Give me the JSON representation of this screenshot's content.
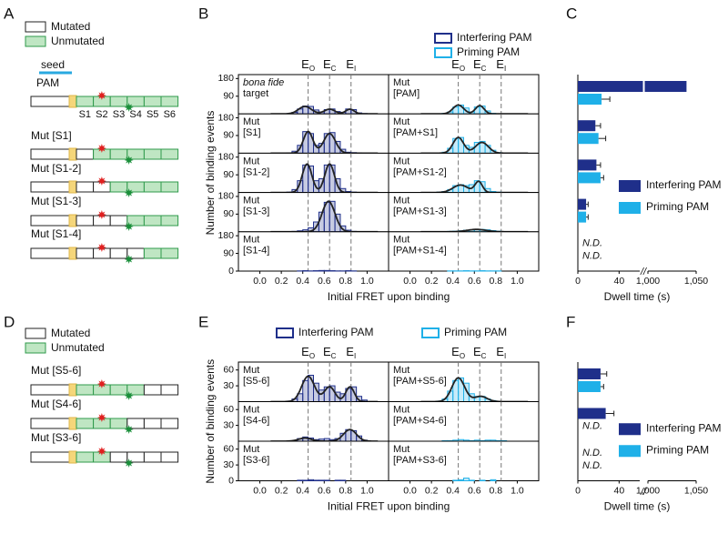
{
  "panel_a": {
    "label": "A",
    "legend": [
      "Mutated",
      "Unmutated"
    ],
    "seed": "seed",
    "pam": "PAM",
    "segments": [
      "S1",
      "S2",
      "S3",
      "S4",
      "S5",
      "S6"
    ],
    "constructs": [
      {
        "mutated": [
          false,
          false,
          false,
          false,
          false,
          false
        ]
      },
      {
        "name": "Mut [S1]",
        "mutated": [
          true,
          false,
          false,
          false,
          false,
          false
        ]
      },
      {
        "name": "Mut [S1-2]",
        "mutated": [
          true,
          true,
          false,
          false,
          false,
          false
        ]
      },
      {
        "name": "Mut [S1-3]",
        "mutated": [
          true,
          true,
          true,
          false,
          false,
          false
        ]
      },
      {
        "name": "Mut [S1-4]",
        "mutated": [
          true,
          true,
          true,
          true,
          false,
          false
        ]
      }
    ]
  },
  "panel_b": {
    "label": "B",
    "legend": [
      "Interfering PAM",
      "Priming PAM"
    ],
    "colors": [
      "#1f2f8a",
      "#1fb0e8"
    ],
    "efret": [
      {
        "value": 0.45,
        "label": "E",
        "subscript": "O"
      },
      {
        "value": 0.65,
        "label": "E",
        "subscript": "C"
      },
      {
        "value": 0.85,
        "label": "E",
        "subscript": "I"
      }
    ],
    "ylabel": "Number of binding events",
    "xlabel": "Initial FRET upon binding",
    "xlim": [
      -0.2,
      1.2
    ],
    "xticks": [
      {
        "value": 0,
        "label": "0.0"
      },
      {
        "value": 0.2,
        "label": "0.2"
      },
      {
        "value": 0.4,
        "label": "0.4"
      },
      {
        "value": 0.6,
        "label": "0.6"
      },
      {
        "value": 0.8,
        "label": "0.8"
      },
      {
        "value": 1,
        "label": "1.0"
      }
    ],
    "ylim": [
      0,
      200
    ],
    "yticks": [
      0,
      90,
      180
    ],
    "bins": [
      0.2,
      0.25,
      0.3,
      0.35,
      0.4,
      0.45,
      0.5,
      0.55,
      0.6,
      0.65,
      0.7,
      0.75,
      0.8,
      0.85,
      0.9,
      0.95,
      1.0
    ],
    "rows": [
      {
        "left": {
          "text": [
            "bona fide",
            "target"
          ],
          "italic_first_line": true,
          "counts": [
            0,
            2,
            8,
            25,
            40,
            38,
            20,
            10,
            22,
            25,
            12,
            8,
            25,
            22,
            5,
            2
          ],
          "fits": [
            {
              "mu": 0.42,
              "sigma": 0.06,
              "amp": 38
            },
            {
              "mu": 0.65,
              "sigma": 0.05,
              "amp": 24
            },
            {
              "mu": 0.84,
              "sigma": 0.04,
              "amp": 24
            }
          ]
        },
        "right": {
          "text": [
            "Mut",
            "[PAM]"
          ],
          "counts": [
            0,
            1,
            3,
            10,
            35,
            45,
            30,
            10,
            35,
            40,
            15,
            3,
            1,
            0,
            0,
            0
          ],
          "fits": [
            {
              "mu": 0.45,
              "sigma": 0.05,
              "amp": 45
            },
            {
              "mu": 0.65,
              "sigma": 0.04,
              "amp": 42
            }
          ]
        }
      },
      {
        "left": {
          "text": [
            "Mut",
            "[S1]"
          ],
          "counts": [
            0,
            2,
            10,
            40,
            110,
            100,
            40,
            50,
            100,
            105,
            60,
            20,
            5,
            3,
            2,
            0
          ],
          "fits": [
            {
              "mu": 0.45,
              "sigma": 0.045,
              "amp": 110
            },
            {
              "mu": 0.65,
              "sigma": 0.055,
              "amp": 100
            }
          ]
        },
        "right": {
          "text": [
            "Mut",
            "[PAM+S1]"
          ],
          "counts": [
            0,
            1,
            5,
            25,
            75,
            80,
            40,
            30,
            55,
            60,
            40,
            15,
            3,
            0,
            0,
            0
          ],
          "fits": [
            {
              "mu": 0.45,
              "sigma": 0.05,
              "amp": 80
            },
            {
              "mu": 0.67,
              "sigma": 0.06,
              "amp": 55
            }
          ]
        }
      },
      {
        "left": {
          "text": [
            "Mut",
            "[S1-2]"
          ],
          "counts": [
            0,
            2,
            15,
            60,
            140,
            135,
            60,
            70,
            140,
            140,
            70,
            20,
            5,
            2,
            0,
            0
          ],
          "fits": [
            {
              "mu": 0.44,
              "sigma": 0.045,
              "amp": 145
            },
            {
              "mu": 0.65,
              "sigma": 0.045,
              "amp": 145
            }
          ]
        },
        "right": {
          "text": [
            "Mut",
            "[PAM+S1-2]"
          ],
          "counts": [
            0,
            2,
            5,
            15,
            35,
            40,
            35,
            40,
            60,
            55,
            20,
            5,
            2,
            0,
            0,
            0
          ],
          "fits": [
            {
              "mu": 0.47,
              "sigma": 0.07,
              "amp": 38
            },
            {
              "mu": 0.64,
              "sigma": 0.035,
              "amp": 55
            }
          ]
        }
      },
      {
        "left": {
          "text": [
            "Mut",
            "[S1-3]"
          ],
          "counts": [
            0,
            0,
            2,
            5,
            10,
            20,
            50,
            100,
            150,
            155,
            90,
            30,
            8,
            2,
            0,
            0
          ],
          "fits": [
            {
              "mu": 0.64,
              "sigma": 0.06,
              "amp": 155
            }
          ]
        },
        "right": {
          "text": [
            "Mut",
            "[PAM+S1-3]"
          ],
          "counts": [
            0,
            0,
            1,
            2,
            3,
            5,
            8,
            10,
            12,
            12,
            10,
            6,
            3,
            1,
            0,
            0
          ],
          "fits": [
            {
              "mu": 0.62,
              "sigma": 0.09,
              "amp": 12
            }
          ]
        }
      },
      {
        "left": {
          "text": [
            "Mut",
            "[S1-4]"
          ],
          "counts": [
            0,
            0,
            0,
            1,
            2,
            1,
            2,
            3,
            3,
            2,
            1,
            1,
            2,
            1,
            0,
            0
          ]
        },
        "right": {
          "text": [
            "Mut",
            "[PAM+S1-4]"
          ],
          "counts": [
            0,
            0,
            0,
            1,
            1,
            1,
            2,
            1,
            1,
            2,
            1,
            1,
            1,
            0,
            0,
            0
          ]
        }
      }
    ]
  },
  "panel_c": {
    "label": "C",
    "xlabel": "Dwell time (s)",
    "xlim": [
      0,
      1050
    ],
    "xbreak": [
      60,
      1000
    ],
    "xticks": [
      0,
      40,
      {
        "value": 1000,
        "label": "1,000"
      },
      {
        "value": 1050,
        "label": "1,050"
      }
    ],
    "series": [
      {
        "name": "Interfering PAM",
        "color": "#1f2f8a",
        "values": [
          1040,
          17,
          18,
          8,
          null
        ],
        "errors": [
          null,
          5,
          4,
          2,
          null
        ],
        "value_labels": [
          null,
          null,
          null,
          null,
          "N.D."
        ]
      },
      {
        "name": "Priming PAM",
        "color": "#1fb0e8",
        "values": [
          23,
          20,
          22,
          8,
          null
        ],
        "errors": [
          8,
          7,
          3,
          2,
          null
        ],
        "value_labels": [
          null,
          null,
          null,
          null,
          "N.D."
        ]
      }
    ]
  },
  "panel_d": {
    "label": "D",
    "legend": [
      "Mutated",
      "Unmutated"
    ],
    "constructs": [
      {
        "name": "Mut [S5-6]",
        "mutated": [
          false,
          false,
          false,
          false,
          true,
          true
        ]
      },
      {
        "name": "Mut [S4-6]",
        "mutated": [
          false,
          false,
          false,
          true,
          true,
          true
        ]
      },
      {
        "name": "Mut [S3-6]",
        "mutated": [
          false,
          false,
          true,
          true,
          true,
          true
        ]
      }
    ]
  },
  "panel_e": {
    "label": "E",
    "legend": [
      "Interfering PAM",
      "Priming PAM"
    ],
    "colors": [
      "#1f2f8a",
      "#1fb0e8"
    ],
    "efret": [
      {
        "value": 0.45,
        "label": "E",
        "subscript": "O"
      },
      {
        "value": 0.65,
        "label": "E",
        "subscript": "C"
      },
      {
        "value": 0.85,
        "label": "E",
        "subscript": "I"
      }
    ],
    "ylabel": "Number of binding events",
    "xlabel": "Initial FRET upon binding",
    "xlim": [
      -0.2,
      1.2
    ],
    "xticks": [
      {
        "value": 0,
        "label": "0.0"
      },
      {
        "value": 0.2,
        "label": "0.2"
      },
      {
        "value": 0.4,
        "label": "0.4"
      },
      {
        "value": 0.6,
        "label": "0.6"
      },
      {
        "value": 0.8,
        "label": "0.8"
      },
      {
        "value": 1,
        "label": "1.0"
      }
    ],
    "ylim": [
      0,
      75
    ],
    "yticks": [
      0,
      30,
      60
    ],
    "bins": [
      0.2,
      0.25,
      0.3,
      0.35,
      0.4,
      0.45,
      0.5,
      0.55,
      0.6,
      0.65,
      0.7,
      0.75,
      0.8,
      0.85,
      0.9,
      0.95,
      1.0
    ],
    "rows": [
      {
        "left": {
          "text": [
            "Mut",
            "[S5-6]"
          ],
          "counts": [
            0,
            1,
            5,
            15,
            40,
            50,
            35,
            22,
            28,
            30,
            18,
            15,
            25,
            28,
            10,
            3
          ],
          "fits": [
            {
              "mu": 0.45,
              "sigma": 0.06,
              "amp": 48
            },
            {
              "mu": 0.65,
              "sigma": 0.05,
              "amp": 28
            },
            {
              "mu": 0.84,
              "sigma": 0.04,
              "amp": 28
            }
          ]
        },
        "right": {
          "text": [
            "Mut",
            "[PAM+S5-6]"
          ],
          "counts": [
            0,
            1,
            5,
            20,
            40,
            45,
            35,
            15,
            10,
            10,
            5,
            2,
            0,
            0,
            0,
            0
          ],
          "fits": [
            {
              "mu": 0.45,
              "sigma": 0.06,
              "amp": 45
            },
            {
              "mu": 0.66,
              "sigma": 0.06,
              "amp": 10
            }
          ]
        }
      },
      {
        "left": {
          "text": [
            "Mut",
            "[S4-6]"
          ],
          "counts": [
            0,
            0,
            1,
            5,
            8,
            6,
            3,
            4,
            5,
            3,
            5,
            15,
            22,
            20,
            10,
            2
          ],
          "fits": [
            {
              "mu": 0.42,
              "sigma": 0.06,
              "amp": 6
            },
            {
              "mu": 0.84,
              "sigma": 0.06,
              "amp": 22
            }
          ]
        },
        "right": {
          "text": [
            "Mut",
            "[PAM+S4-6]"
          ],
          "counts": [
            0,
            0,
            1,
            1,
            2,
            3,
            2,
            1,
            2,
            1,
            2,
            2,
            1,
            1,
            0,
            0
          ]
        }
      },
      {
        "left": {
          "text": [
            "Mut",
            "[S3-6]"
          ],
          "counts": [
            0,
            0,
            0,
            1,
            1,
            2,
            1,
            1,
            1,
            0,
            1,
            1,
            0,
            0,
            0,
            0
          ]
        },
        "right": {
          "text": [
            "Mut",
            "[PAM+S3-6]"
          ],
          "counts": [
            0,
            0,
            0,
            0,
            1,
            2,
            5,
            1,
            0,
            1,
            0,
            2,
            0,
            0,
            0,
            0
          ]
        }
      }
    ]
  },
  "panel_f": {
    "label": "F",
    "xlabel": "Dwell time (s)",
    "xlim": [
      0,
      1050
    ],
    "xbreak": [
      60,
      1000
    ],
    "xticks": [
      0,
      40,
      {
        "value": 1000,
        "label": "1,000"
      },
      {
        "value": 1050,
        "label": "1,050"
      }
    ],
    "series": [
      {
        "name": "Interfering PAM",
        "color": "#1f2f8a",
        "values": [
          22,
          27,
          null
        ],
        "errors": [
          6,
          8,
          null
        ],
        "value_labels": [
          null,
          null,
          "N.D."
        ]
      },
      {
        "name": "Priming PAM",
        "color": "#1fb0e8",
        "values": [
          22,
          null,
          null
        ],
        "errors": [
          3,
          null,
          null
        ],
        "value_labels": [
          null,
          "N.D.",
          "N.D."
        ]
      }
    ]
  }
}
